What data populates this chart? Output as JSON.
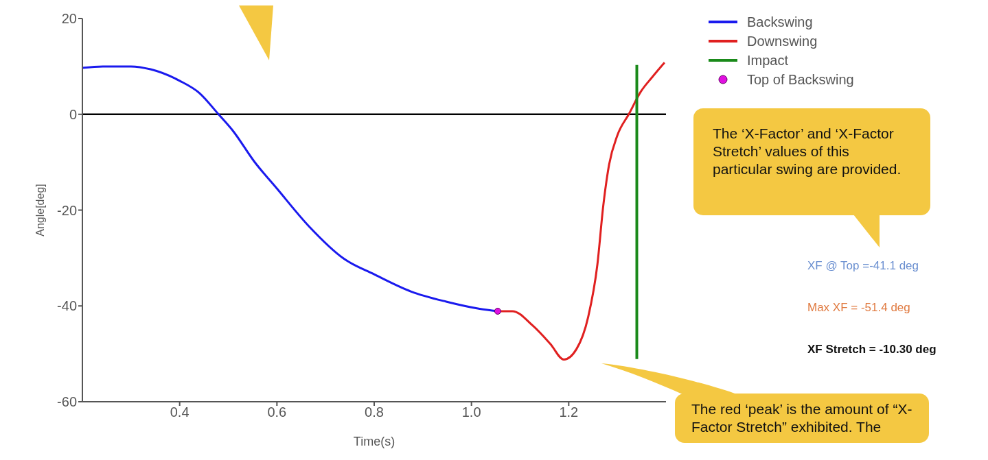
{
  "chart_data": {
    "type": "line",
    "xlabel": "Time(s)",
    "ylabel": "Angle[deg]",
    "xlim": [
      0.2,
      1.4
    ],
    "xticks": [
      0.4,
      0.6,
      0.8,
      {
        "value": 1,
        "label": "1.0"
      },
      1.2
    ],
    "ylim": [
      -60,
      20
    ],
    "yticks": [
      -60,
      -40,
      -20,
      0,
      20
    ],
    "legend": "top right",
    "grid": false,
    "ref_lines": [
      {
        "axis": "y",
        "value": 0,
        "color": "#000000"
      }
    ],
    "series": [
      {
        "name": "Backswing",
        "color": "#1a1aee",
        "x": [
          0.2,
          0.242,
          0.3,
          0.34,
          0.4,
          0.44,
          0.48,
          0.51,
          0.553,
          0.6,
          0.666,
          0.737,
          0.8,
          0.876,
          0.948,
          1.017,
          1.054
        ],
        "values": [
          9.7,
          10,
          10,
          9.4,
          7,
          4.5,
          0,
          -3.5,
          -9.8,
          -15.5,
          -23.4,
          -30.1,
          -33.4,
          -37,
          -39.1,
          -40.6,
          -41.1
        ]
      },
      {
        "name": "Downswing",
        "color": "#e02020",
        "x": [
          1.054,
          1.084,
          1.126,
          1.162,
          1.19,
          1.216,
          1.24,
          1.259,
          1.271,
          1.283,
          1.3,
          1.324,
          1.348,
          1.372,
          1.397
        ],
        "values": [
          -41.1,
          -41.1,
          -44.1,
          -47.9,
          -51.2,
          -49,
          -42.3,
          -31.3,
          -19.1,
          -10.5,
          -4.4,
          0.1,
          4.7,
          7.8,
          10.8
        ]
      },
      {
        "name": "Impact",
        "color": "#1a8a1a",
        "x": [
          1.34,
          1.34
        ],
        "values": [
          10.3,
          -51.1
        ]
      },
      {
        "name": "Top of Backswing",
        "type": "scatter",
        "marker": "circle",
        "color": "#e010e0",
        "x": [
          1.054
        ],
        "values": [
          -41.1
        ]
      }
    ],
    "annotations": [
      "The ‘X-Factor’ and ‘X-Factor Stretch’ values of this particular swing are provided.",
      "XF @ Top =-41.1 deg",
      "Max XF = -51.4 deg",
      "XF Stretch = -10.30 deg",
      "The red ‘peak’ is the amount of “X-Factor Stretch” exhibited. The"
    ]
  }
}
